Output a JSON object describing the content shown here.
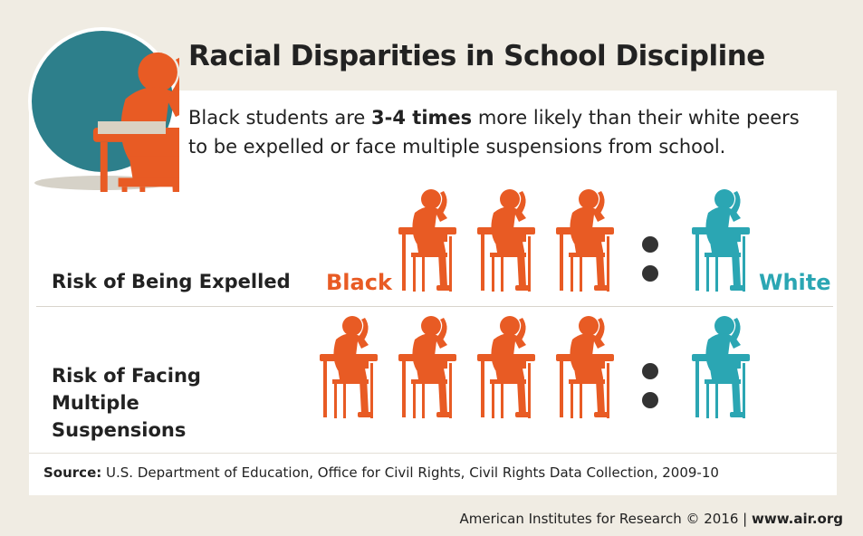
{
  "header": {
    "title": "Racial Disparities in School Discipline",
    "subtitle_line1": [
      "Black students are ",
      "3-4 times",
      " more likely than their white peers"
    ],
    "subtitle_line2": "to be expelled or face multiple suspensions from school."
  },
  "group_labels": {
    "black": "Black",
    "white": "White"
  },
  "rows": [
    {
      "label": "Risk of Being Expelled",
      "black_count": 3,
      "white_count": 1
    },
    {
      "label": "Risk of Facing Multiple Suspensions",
      "black_count": 4,
      "white_count": 1
    }
  ],
  "source": {
    "lead": "Source:",
    "text": " U.S. Department of Education, Office for Civil Rights, Civil Rights Data Collection, 2009-10"
  },
  "footer": {
    "text": "American Institutes for Research © 2016 | ",
    "link": "www.air.org"
  }
}
